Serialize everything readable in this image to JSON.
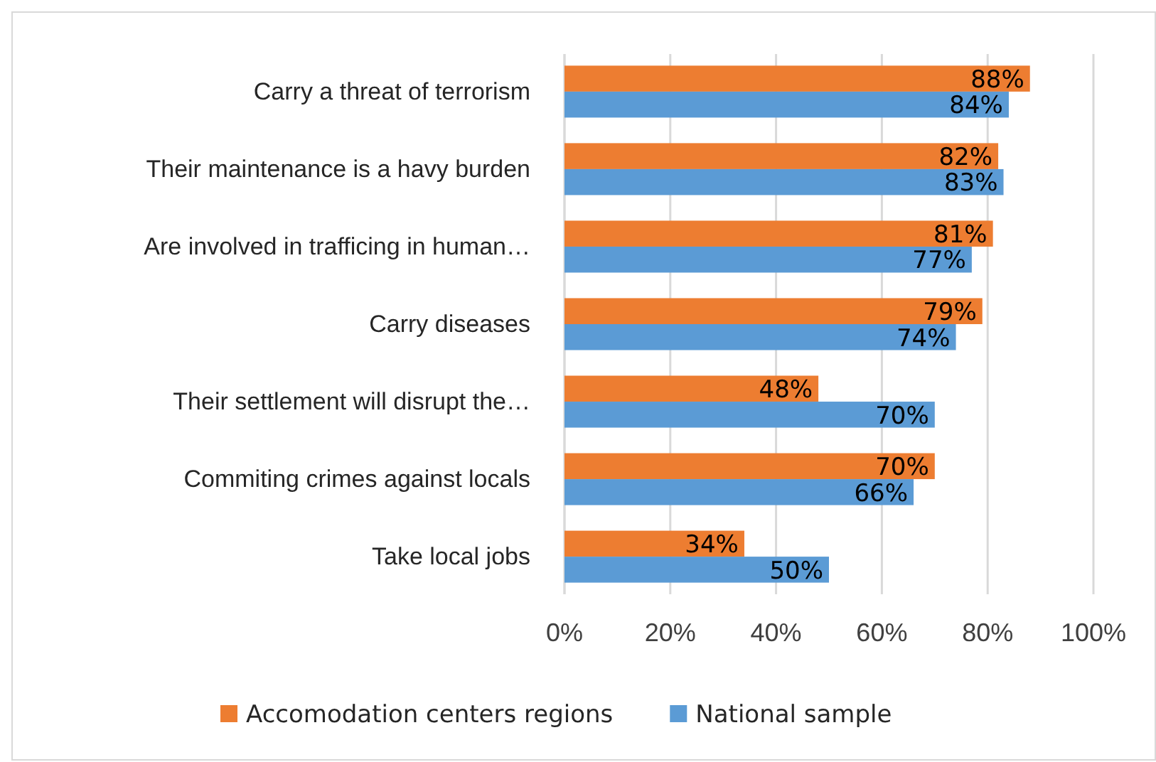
{
  "chart_data": {
    "type": "bar",
    "orientation": "horizontal",
    "categories": [
      "Carry a threat of terrorism",
      "Their maintenance is a havy burden",
      "Are involved in trafficing in human…",
      "Carry diseases",
      "Their settlement will disrupt the…",
      "Commiting crimes against locals",
      "Take local jobs"
    ],
    "series": [
      {
        "name": "Accomodation centers regions",
        "color": "#ed7d31",
        "values": [
          88,
          82,
          81,
          79,
          48,
          70,
          34
        ],
        "value_labels": [
          "88%",
          "82%",
          "81%",
          "79%",
          "48%",
          "70%",
          "34%"
        ]
      },
      {
        "name": "National sample",
        "color": "#5b9bd5",
        "values": [
          84,
          83,
          77,
          74,
          70,
          66,
          50
        ],
        "value_labels": [
          "84%",
          "83%",
          "77%",
          "74%",
          "70%",
          "66%",
          "50%"
        ]
      }
    ],
    "xlim": [
      0,
      100
    ],
    "xticks": [
      {
        "value": 0,
        "label": "0%"
      },
      {
        "value": 20,
        "label": "20%"
      },
      {
        "value": 40,
        "label": "40%"
      },
      {
        "value": 60,
        "label": "60%"
      },
      {
        "value": 80,
        "label": "80%"
      },
      {
        "value": 100,
        "label": "100%"
      }
    ],
    "grid": "x",
    "legend": "bottom"
  }
}
